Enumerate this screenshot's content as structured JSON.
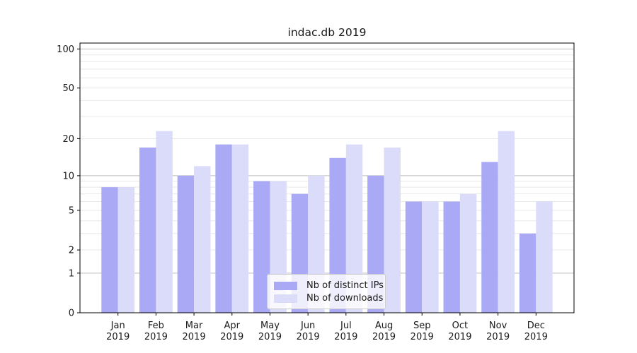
{
  "figure": {
    "background": "#ffffff"
  },
  "chart_data": {
    "type": "bar",
    "title": "indac.db 2019",
    "categories": [
      "Jan",
      "Feb",
      "Mar",
      "Apr",
      "May",
      "Jun",
      "Jul",
      "Aug",
      "Sep",
      "Oct",
      "Nov",
      "Dec"
    ],
    "x_year_label": "2019",
    "series": [
      {
        "name": "Nb of distinct IPs",
        "color": "#a9a9f5",
        "values": [
          8,
          17,
          10,
          18,
          9,
          7,
          14,
          10,
          6,
          6,
          13,
          3
        ]
      },
      {
        "name": "Nb of downloads",
        "color": "#dbdbfa",
        "values": [
          8,
          23,
          12,
          18,
          9,
          10,
          18,
          17,
          6,
          7,
          23,
          6
        ]
      }
    ],
    "y_axis": {
      "scale": "log10(1+y)",
      "ylim": [
        0,
        111
      ],
      "tick_values": [
        0,
        1,
        2,
        5,
        10,
        20,
        50,
        100
      ],
      "tick_labels": [
        "0",
        "1",
        "2",
        "5",
        "10",
        "20",
        "50",
        "100"
      ],
      "grid_major": [
        1,
        10,
        100
      ],
      "grid_minor": [
        2,
        3,
        4,
        5,
        6,
        7,
        8,
        9,
        20,
        30,
        40,
        50,
        60,
        70,
        80,
        90
      ]
    },
    "legend": {
      "position": "lower-center"
    },
    "grid": true
  },
  "colors": {
    "grid_major": "#bdbdbd",
    "grid_minor": "#e8e8e8",
    "spine": "#000000",
    "tick_text": "#1a1a1a"
  }
}
